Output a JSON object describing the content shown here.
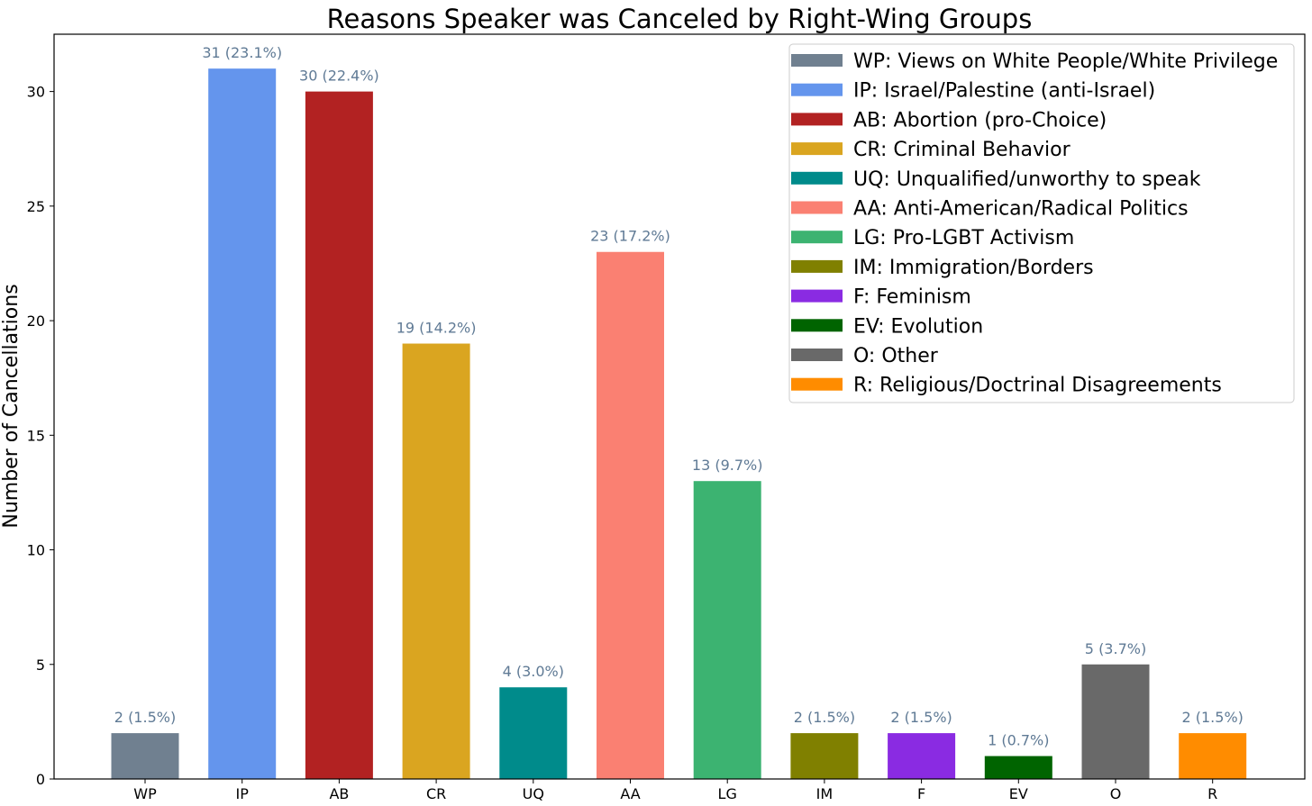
{
  "chart_data": {
    "type": "bar",
    "title": "Reasons Speaker was Canceled by Right-Wing Groups",
    "xlabel": "",
    "ylabel": "Number of Cancellations",
    "ylim": [
      0,
      32.5
    ],
    "yticks": [
      0,
      5,
      10,
      15,
      20,
      25,
      30
    ],
    "grid": false,
    "legend_position": "top-right",
    "label_color": "#5f7a95",
    "categories": [
      "WP",
      "IP",
      "AB",
      "CR",
      "UQ",
      "AA",
      "LG",
      "IM",
      "F",
      "EV",
      "O",
      "R"
    ],
    "values": [
      2,
      31,
      30,
      19,
      4,
      23,
      13,
      2,
      2,
      1,
      5,
      2
    ],
    "data_labels": [
      "2 (1.5%)",
      "31 (23.1%)",
      "30 (22.4%)",
      "19 (14.2%)",
      "4 (3.0%)",
      "23 (17.2%)",
      "13 (9.7%)",
      "2 (1.5%)",
      "2 (1.5%)",
      "1 (0.7%)",
      "5 (3.7%)",
      "2 (1.5%)"
    ],
    "colors": [
      "#708090",
      "#6495ED",
      "#B22222",
      "#DAA520",
      "#008B8B",
      "#FA8072",
      "#3CB371",
      "#808000",
      "#8A2BE2",
      "#006400",
      "#696969",
      "#FF8C00"
    ],
    "legend": [
      "WP: Views on White People/White Privilege",
      "IP: Israel/Palestine (anti-Israel)",
      "AB: Abortion (pro-Choice)",
      "CR: Criminal Behavior",
      "UQ: Unqualified/unworthy to speak",
      "AA: Anti-American/Radical Politics",
      "LG: Pro-LGBT Activism",
      "IM: Immigration/Borders",
      "F: Feminism",
      "EV: Evolution",
      "O: Other",
      "R: Religious/Doctrinal Disagreements"
    ]
  }
}
